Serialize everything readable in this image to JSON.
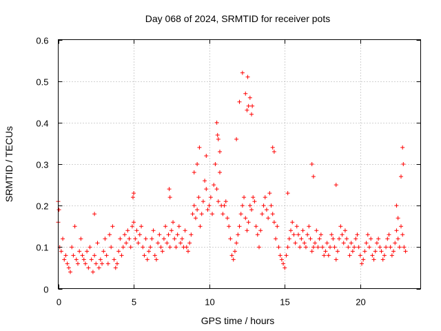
{
  "chart_data": {
    "type": "scatter",
    "title": "Day 068 of 2024, SRMTID for receiver pots",
    "xlabel": "GPS time / hours",
    "ylabel": "SRMTID / TECUs",
    "xlim": [
      0,
      24
    ],
    "ylim": [
      0,
      0.6
    ],
    "x_ticks": [
      0,
      5,
      10,
      15,
      20
    ],
    "x_tick_labels": [
      "0",
      "5",
      "10",
      "15",
      "20"
    ],
    "y_ticks": [
      0,
      0.1,
      0.2,
      0.3,
      0.4,
      0.5,
      0.6
    ],
    "y_tick_labels": [
      "0",
      "0.1",
      "0.2",
      "0.3",
      "0.4",
      "0.5",
      "0.6"
    ],
    "grid": true,
    "marker": "+",
    "colors": {
      "series": "#ff0000",
      "grid": "#a0a0a0",
      "axis": "#000000"
    },
    "series": [
      {
        "name": "SRMTID",
        "x": [
          0.0,
          0.1,
          0.2,
          0.3,
          0.4,
          0.5,
          0.6,
          0.7,
          0.8,
          0.9,
          1.0,
          1.1,
          1.2,
          1.3,
          1.4,
          1.5,
          1.6,
          1.7,
          1.8,
          1.9,
          2.0,
          2.1,
          2.2,
          2.3,
          2.4,
          2.5,
          2.6,
          2.7,
          2.8,
          2.9,
          3.0,
          3.1,
          3.2,
          3.3,
          3.4,
          3.5,
          3.6,
          3.7,
          3.8,
          3.9,
          4.0,
          4.1,
          4.2,
          4.3,
          4.4,
          4.5,
          4.6,
          4.7,
          4.8,
          4.9,
          5.0,
          5.1,
          5.2,
          5.3,
          5.4,
          5.5,
          5.6,
          5.7,
          5.8,
          5.9,
          6.0,
          6.1,
          6.2,
          6.3,
          6.4,
          6.5,
          6.6,
          6.7,
          6.8,
          6.9,
          7.0,
          7.1,
          7.2,
          7.3,
          7.4,
          7.5,
          7.6,
          7.7,
          7.8,
          7.9,
          8.0,
          8.1,
          8.2,
          8.3,
          8.4,
          8.5,
          8.6,
          8.7,
          8.8,
          8.9,
          9.0,
          9.1,
          9.2,
          9.3,
          9.4,
          9.5,
          9.6,
          9.7,
          9.8,
          9.9,
          10.0,
          10.1,
          10.2,
          10.3,
          10.4,
          10.5,
          10.6,
          10.7,
          10.8,
          10.9,
          11.0,
          11.1,
          11.2,
          11.3,
          11.4,
          11.5,
          11.6,
          11.7,
          11.8,
          11.9,
          12.0,
          12.1,
          12.2,
          12.3,
          12.4,
          12.5,
          12.6,
          12.7,
          12.8,
          12.9,
          13.0,
          13.1,
          13.2,
          13.3,
          13.4,
          13.5,
          13.6,
          13.7,
          13.8,
          13.9,
          14.0,
          14.1,
          14.2,
          14.3,
          14.4,
          14.5,
          14.6,
          14.7,
          14.8,
          14.9,
          15.0,
          15.1,
          15.2,
          15.3,
          15.4,
          15.5,
          15.6,
          15.7,
          15.8,
          15.9,
          16.0,
          16.1,
          16.2,
          16.3,
          16.4,
          16.5,
          16.6,
          16.7,
          16.8,
          16.9,
          17.0,
          17.1,
          17.2,
          17.3,
          17.4,
          17.5,
          17.6,
          17.7,
          17.8,
          17.9,
          18.0,
          18.1,
          18.2,
          18.3,
          18.4,
          18.5,
          18.6,
          18.7,
          18.8,
          18.9,
          19.0,
          19.1,
          19.2,
          19.3,
          19.4,
          19.5,
          19.6,
          19.7,
          19.8,
          19.9,
          20.0,
          20.1,
          20.2,
          20.3,
          20.4,
          20.5,
          20.6,
          20.7,
          20.8,
          20.9,
          21.0,
          21.1,
          21.2,
          21.3,
          21.4,
          21.5,
          21.6,
          21.7,
          21.8,
          21.9,
          22.0,
          22.1,
          22.2,
          22.3,
          22.4,
          22.5,
          22.6,
          22.7,
          22.8,
          22.9,
          23.0,
          0.0,
          0.05,
          2.4,
          4.95,
          5.0,
          7.35,
          7.4,
          9.0,
          9.2,
          9.35,
          9.8,
          10.5,
          10.55,
          10.6,
          10.7,
          11.8,
          12.0,
          12.2,
          12.4,
          12.5,
          12.55,
          12.6,
          12.7,
          12.8,
          12.85,
          14.2,
          14.3,
          15.2,
          16.8,
          16.9,
          18.4,
          22.4,
          22.5,
          22.7,
          22.8,
          22.85
        ],
        "y": [
          0.16,
          0.1,
          0.09,
          0.12,
          0.07,
          0.08,
          0.06,
          0.05,
          0.04,
          0.1,
          0.08,
          0.15,
          0.07,
          0.06,
          0.09,
          0.12,
          0.08,
          0.07,
          0.06,
          0.09,
          0.05,
          0.1,
          0.07,
          0.04,
          0.08,
          0.06,
          0.11,
          0.05,
          0.07,
          0.06,
          0.09,
          0.12,
          0.08,
          0.06,
          0.13,
          0.1,
          0.15,
          0.07,
          0.05,
          0.06,
          0.09,
          0.12,
          0.08,
          0.1,
          0.13,
          0.11,
          0.14,
          0.12,
          0.1,
          0.15,
          0.16,
          0.12,
          0.14,
          0.11,
          0.13,
          0.15,
          0.1,
          0.08,
          0.12,
          0.07,
          0.09,
          0.1,
          0.12,
          0.14,
          0.08,
          0.07,
          0.11,
          0.13,
          0.1,
          0.09,
          0.12,
          0.15,
          0.11,
          0.13,
          0.1,
          0.14,
          0.16,
          0.12,
          0.1,
          0.13,
          0.15,
          0.11,
          0.12,
          0.1,
          0.14,
          0.1,
          0.09,
          0.11,
          0.13,
          0.18,
          0.2,
          0.17,
          0.19,
          0.22,
          0.15,
          0.18,
          0.21,
          0.26,
          0.24,
          0.19,
          0.2,
          0.22,
          0.18,
          0.25,
          0.3,
          0.24,
          0.21,
          0.28,
          0.2,
          0.18,
          0.2,
          0.21,
          0.17,
          0.15,
          0.12,
          0.08,
          0.07,
          0.09,
          0.11,
          0.13,
          0.15,
          0.18,
          0.2,
          0.22,
          0.17,
          0.14,
          0.16,
          0.2,
          0.19,
          0.22,
          0.21,
          0.15,
          0.13,
          0.1,
          0.14,
          0.18,
          0.2,
          0.22,
          0.19,
          0.17,
          0.23,
          0.2,
          0.18,
          0.16,
          0.12,
          0.15,
          0.1,
          0.08,
          0.07,
          0.06,
          0.05,
          0.08,
          0.1,
          0.12,
          0.14,
          0.16,
          0.13,
          0.11,
          0.15,
          0.13,
          0.1,
          0.12,
          0.14,
          0.11,
          0.1,
          0.13,
          0.15,
          0.12,
          0.09,
          0.1,
          0.11,
          0.14,
          0.1,
          0.12,
          0.13,
          0.1,
          0.08,
          0.09,
          0.11,
          0.08,
          0.1,
          0.13,
          0.12,
          0.1,
          0.07,
          0.09,
          0.12,
          0.15,
          0.13,
          0.11,
          0.14,
          0.12,
          0.1,
          0.08,
          0.11,
          0.09,
          0.1,
          0.12,
          0.13,
          0.1,
          0.08,
          0.06,
          0.07,
          0.09,
          0.11,
          0.13,
          0.1,
          0.12,
          0.08,
          0.07,
          0.09,
          0.11,
          0.12,
          0.1,
          0.09,
          0.07,
          0.08,
          0.1,
          0.12,
          0.13,
          0.1,
          0.08,
          0.09,
          0.11,
          0.14,
          0.12,
          0.1,
          0.15,
          0.13,
          0.1,
          0.09,
          0.21,
          0.19,
          0.18,
          0.22,
          0.23,
          0.24,
          0.22,
          0.28,
          0.3,
          0.34,
          0.32,
          0.4,
          0.37,
          0.36,
          0.33,
          0.36,
          0.45,
          0.52,
          0.47,
          0.43,
          0.51,
          0.44,
          0.46,
          0.42,
          0.44,
          0.34,
          0.33,
          0.23,
          0.3,
          0.27,
          0.25,
          0.2,
          0.17,
          0.27,
          0.34,
          0.3
        ]
      }
    ]
  }
}
